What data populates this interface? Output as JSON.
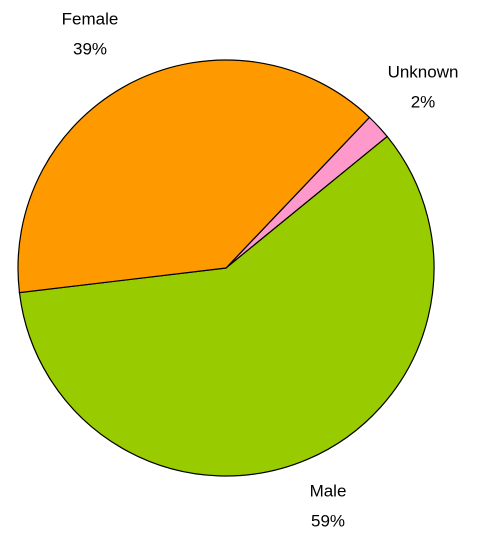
{
  "chart_data": {
    "type": "pie",
    "categories": [
      "Unknown",
      "Male",
      "Female"
    ],
    "values": [
      2,
      59,
      39
    ],
    "value_labels": [
      "2%",
      "59%",
      "39%"
    ],
    "colors": [
      "#ff99cc",
      "#99cc00",
      "#ff9900"
    ]
  }
}
